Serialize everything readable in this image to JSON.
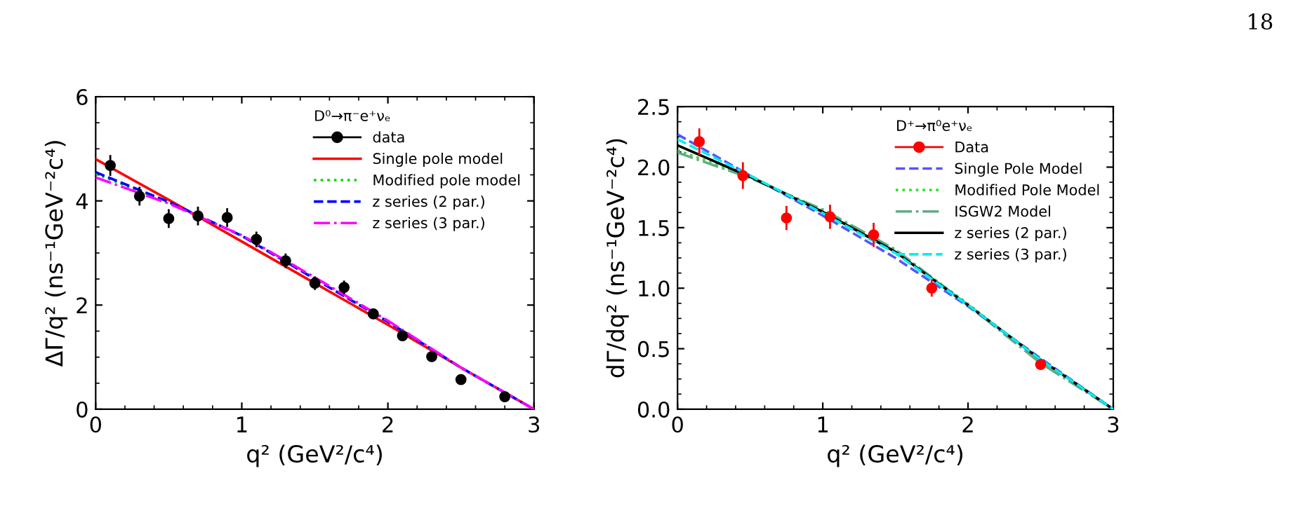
{
  "chart_data": [
    {
      "type": "line",
      "xlabel": "q² (GeV²/c⁴)",
      "ylabel": "ΔΓ/q² (ns⁻¹GeV⁻²c⁴)",
      "legend_title": "D⁰→π⁻e⁺νₑ",
      "legend": "top right",
      "xlim": [
        0,
        3
      ],
      "xticks": [
        0,
        1,
        2,
        3
      ],
      "ylim": [
        0,
        6
      ],
      "yticks": [
        0,
        2,
        4,
        6
      ],
      "grid": false,
      "series": [
        {
          "name": "data",
          "type": "scatter",
          "marker": "circle",
          "color": "#000000",
          "x": [
            0.1,
            0.3,
            0.5,
            0.7,
            0.9,
            1.1,
            1.3,
            1.5,
            1.7,
            1.9,
            2.1,
            2.3,
            2.5,
            2.8
          ],
          "values": [
            4.68,
            4.09,
            3.66,
            3.71,
            3.68,
            3.26,
            2.85,
            2.42,
            2.34,
            1.83,
            1.41,
            1.01,
            0.57,
            0.24
          ],
          "errors": [
            0.2,
            0.18,
            0.18,
            0.18,
            0.18,
            0.15,
            0.14,
            0.13,
            0.13,
            0.1,
            0.09,
            0.08,
            0.07,
            0.05
          ]
        },
        {
          "name": "Single pole model",
          "color": "#ff0000",
          "line_style": "solid",
          "x": [
            0,
            0.5,
            1,
            1.5,
            2,
            2.5,
            3
          ],
          "values": [
            4.8,
            4.02,
            3.22,
            2.42,
            1.62,
            0.8,
            0
          ]
        },
        {
          "name": "Modified pole model",
          "color": "#00dd00",
          "line_style": "dotted",
          "x": [
            0,
            0.5,
            1,
            1.5,
            2,
            2.5,
            3
          ],
          "values": [
            4.52,
            3.97,
            3.33,
            2.51,
            1.68,
            0.79,
            0
          ]
        },
        {
          "name": "z series (2 par.)",
          "color": "#0000ff",
          "line_style": "dashed",
          "x": [
            0,
            0.5,
            1,
            1.5,
            2,
            2.5,
            3
          ],
          "values": [
            4.55,
            3.98,
            3.33,
            2.5,
            1.68,
            0.8,
            0
          ]
        },
        {
          "name": "z series (3 par.)",
          "color": "#ff00ff",
          "line_style": "dashdot",
          "x": [
            0,
            0.5,
            1,
            1.5,
            2,
            2.5,
            3
          ],
          "values": [
            4.45,
            3.95,
            3.34,
            2.53,
            1.7,
            0.8,
            0
          ]
        }
      ]
    },
    {
      "type": "line",
      "xlabel": "q² (GeV²/c⁴)",
      "ylabel": "dΓ/dq² (ns⁻¹GeV⁻²c⁴)",
      "legend_title": "D⁺→π⁰e⁺νₑ",
      "legend": "top right",
      "xlim": [
        0,
        3
      ],
      "xticks": [
        0,
        1,
        2,
        3
      ],
      "ylim": [
        0,
        2.5
      ],
      "yticks": [
        {
          "value": 0,
          "label": "0.0"
        },
        {
          "value": 0.5,
          "label": "0.5"
        },
        {
          "value": 1,
          "label": "1.0"
        },
        {
          "value": 1.5,
          "label": "1.5"
        },
        {
          "value": 2,
          "label": "2.0"
        },
        {
          "value": 2.5,
          "label": "2.5"
        }
      ],
      "grid": false,
      "annotations": [
        "18"
      ],
      "series": [
        {
          "name": "Data",
          "type": "scatter",
          "marker": "circle",
          "color": "#ff0000",
          "x": [
            0.15,
            0.45,
            0.75,
            1.05,
            1.35,
            1.75,
            2.5
          ],
          "values": [
            2.21,
            1.93,
            1.58,
            1.59,
            1.44,
            1.0,
            0.37
          ],
          "errors": [
            0.11,
            0.11,
            0.1,
            0.1,
            0.1,
            0.07,
            0.03
          ]
        },
        {
          "name": "Single Pole Model",
          "color": "#5555ff",
          "line_style": "dashed",
          "x": [
            0,
            0.5,
            1,
            1.5,
            2,
            2.5,
            3
          ],
          "values": [
            2.27,
            1.93,
            1.6,
            1.25,
            0.85,
            0.42,
            0
          ]
        },
        {
          "name": "Modified Pole Model",
          "color": "#33dd33",
          "line_style": "dotted",
          "x": [
            0,
            0.5,
            1,
            1.5,
            2,
            2.5,
            3
          ],
          "values": [
            2.14,
            1.92,
            1.64,
            1.31,
            0.87,
            0.4,
            0
          ]
        },
        {
          "name": "ISGW2 Model",
          "color": "#66aa88",
          "line_style": "dashdot",
          "x": [
            0,
            0.5,
            1,
            1.5,
            2,
            2.5,
            3
          ],
          "values": [
            2.12,
            1.91,
            1.65,
            1.32,
            0.86,
            0.38,
            0
          ]
        },
        {
          "name": "z series (2 par.)",
          "color": "#000000",
          "line_style": "solid",
          "x": [
            0,
            0.5,
            1,
            1.5,
            2,
            2.5,
            3
          ],
          "values": [
            2.18,
            1.92,
            1.63,
            1.3,
            0.86,
            0.41,
            0
          ]
        },
        {
          "name": "z series (3 par.)",
          "color": "#00eeee",
          "line_style": "dashed",
          "x": [
            0,
            0.5,
            1,
            1.5,
            2,
            2.5,
            3
          ],
          "values": [
            2.23,
            1.93,
            1.62,
            1.29,
            0.86,
            0.41,
            0
          ]
        }
      ]
    }
  ]
}
